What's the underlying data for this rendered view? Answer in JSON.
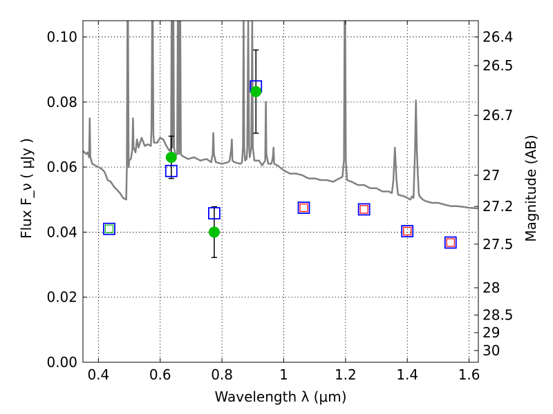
{
  "chart_data": {
    "type": "scatter",
    "xlabel": "Wavelength  λ (μm)",
    "ylabel": "Flux  F_ν  ( μJy )",
    "ylabel_right": "Magnitude (AB)",
    "xlim": [
      0.35,
      1.63
    ],
    "ylim": [
      0.0,
      0.105
    ],
    "grid": true,
    "x_ticks": [
      0.4,
      0.6,
      0.8,
      1.0,
      1.2,
      1.4,
      1.6
    ],
    "x_tick_labels": [
      "0.4",
      "0.6",
      "0.8",
      "1",
      "1.2",
      "1.4",
      "1.6"
    ],
    "y_ticks": [
      0.0,
      0.02,
      0.04,
      0.06,
      0.08,
      0.1
    ],
    "y_tick_labels": [
      "0.00",
      "0.02",
      "0.04",
      "0.06",
      "0.08",
      "0.10"
    ],
    "right_ticks": [
      {
        "label": "26.4",
        "flux": 0.1
      },
      {
        "label": "26.5",
        "flux": 0.0912
      },
      {
        "label": "26.7",
        "flux": 0.0759
      },
      {
        "label": "27",
        "flux": 0.0575
      },
      {
        "label": "27.2",
        "flux": 0.0479
      },
      {
        "label": "27.5",
        "flux": 0.0363
      },
      {
        "label": "28",
        "flux": 0.0229
      },
      {
        "label": "28.5",
        "flux": 0.0145
      },
      {
        "label": "29",
        "flux": 0.0091
      },
      {
        "label": "30",
        "flux": 0.0036
      }
    ],
    "series": [
      {
        "kind": "line",
        "color": "#808080",
        "points": [
          [
            0.35,
            0.065
          ],
          [
            0.36,
            0.064
          ],
          [
            0.365,
            0.0645
          ],
          [
            0.37,
            0.063
          ],
          [
            0.372,
            0.075
          ],
          [
            0.374,
            0.063
          ],
          [
            0.38,
            0.061
          ],
          [
            0.39,
            0.0605
          ],
          [
            0.4,
            0.06
          ],
          [
            0.41,
            0.0595
          ],
          [
            0.42,
            0.0585
          ],
          [
            0.43,
            0.056
          ],
          [
            0.44,
            0.0555
          ],
          [
            0.45,
            0.054
          ],
          [
            0.46,
            0.053
          ],
          [
            0.47,
            0.052
          ],
          [
            0.48,
            0.0505
          ],
          [
            0.49,
            0.05
          ],
          [
            0.492,
            0.06
          ],
          [
            0.494,
            0.105
          ],
          [
            0.496,
            0.105
          ],
          [
            0.498,
            0.06
          ],
          [
            0.5,
            0.062
          ],
          [
            0.505,
            0.0625
          ],
          [
            0.51,
            0.0655
          ],
          [
            0.512,
            0.075
          ],
          [
            0.514,
            0.066
          ],
          [
            0.52,
            0.0645
          ],
          [
            0.525,
            0.0685
          ],
          [
            0.53,
            0.066
          ],
          [
            0.54,
            0.069
          ],
          [
            0.55,
            0.0665
          ],
          [
            0.56,
            0.067
          ],
          [
            0.57,
            0.0665
          ],
          [
            0.572,
            0.072
          ],
          [
            0.574,
            0.105
          ],
          [
            0.576,
            0.105
          ],
          [
            0.578,
            0.07
          ],
          [
            0.58,
            0.0675
          ],
          [
            0.59,
            0.0675
          ],
          [
            0.6,
            0.069
          ],
          [
            0.61,
            0.0685
          ],
          [
            0.62,
            0.0665
          ],
          [
            0.63,
            0.065
          ],
          [
            0.635,
            0.066
          ],
          [
            0.637,
            0.105
          ],
          [
            0.639,
            0.105
          ],
          [
            0.641,
            0.066
          ],
          [
            0.643,
            0.105
          ],
          [
            0.645,
            0.066
          ],
          [
            0.65,
            0.0635
          ],
          [
            0.655,
            0.064
          ],
          [
            0.657,
            0.105
          ],
          [
            0.659,
            0.105
          ],
          [
            0.661,
            0.064
          ],
          [
            0.663,
            0.105
          ],
          [
            0.665,
            0.105
          ],
          [
            0.667,
            0.064
          ],
          [
            0.67,
            0.0635
          ],
          [
            0.69,
            0.0625
          ],
          [
            0.71,
            0.063
          ],
          [
            0.73,
            0.062
          ],
          [
            0.75,
            0.0625
          ],
          [
            0.765,
            0.0615
          ],
          [
            0.77,
            0.064
          ],
          [
            0.772,
            0.0705
          ],
          [
            0.774,
            0.064
          ],
          [
            0.78,
            0.0615
          ],
          [
            0.8,
            0.061
          ],
          [
            0.82,
            0.0615
          ],
          [
            0.825,
            0.062
          ],
          [
            0.83,
            0.0655
          ],
          [
            0.832,
            0.0685
          ],
          [
            0.834,
            0.062
          ],
          [
            0.84,
            0.0615
          ],
          [
            0.86,
            0.061
          ],
          [
            0.865,
            0.0615
          ],
          [
            0.868,
            0.066
          ],
          [
            0.87,
            0.105
          ],
          [
            0.872,
            0.066
          ],
          [
            0.875,
            0.062
          ],
          [
            0.88,
            0.0625
          ],
          [
            0.882,
            0.066
          ],
          [
            0.885,
            0.105
          ],
          [
            0.888,
            0.066
          ],
          [
            0.89,
            0.063
          ],
          [
            0.895,
            0.066
          ],
          [
            0.898,
            0.105
          ],
          [
            0.9,
            0.066
          ],
          [
            0.905,
            0.062
          ],
          [
            0.92,
            0.062
          ],
          [
            0.93,
            0.0605
          ],
          [
            0.94,
            0.062
          ],
          [
            0.942,
            0.08
          ],
          [
            0.944,
            0.064
          ],
          [
            0.95,
            0.061
          ],
          [
            0.96,
            0.061
          ],
          [
            0.965,
            0.063
          ],
          [
            0.967,
            0.066
          ],
          [
            0.969,
            0.061
          ],
          [
            0.98,
            0.0605
          ],
          [
            1.0,
            0.059
          ],
          [
            1.02,
            0.058
          ],
          [
            1.04,
            0.058
          ],
          [
            1.06,
            0.0575
          ],
          [
            1.08,
            0.0565
          ],
          [
            1.1,
            0.0565
          ],
          [
            1.12,
            0.056
          ],
          [
            1.14,
            0.056
          ],
          [
            1.16,
            0.0555
          ],
          [
            1.18,
            0.0565
          ],
          [
            1.19,
            0.057
          ],
          [
            1.195,
            0.062
          ],
          [
            1.197,
            0.105
          ],
          [
            1.199,
            0.105
          ],
          [
            1.201,
            0.062
          ],
          [
            1.205,
            0.056
          ],
          [
            1.22,
            0.0555
          ],
          [
            1.24,
            0.0545
          ],
          [
            1.26,
            0.0545
          ],
          [
            1.28,
            0.0535
          ],
          [
            1.3,
            0.0535
          ],
          [
            1.32,
            0.0525
          ],
          [
            1.34,
            0.0525
          ],
          [
            1.35,
            0.052
          ],
          [
            1.355,
            0.056
          ],
          [
            1.36,
            0.066
          ],
          [
            1.365,
            0.056
          ],
          [
            1.37,
            0.0515
          ],
          [
            1.39,
            0.051
          ],
          [
            1.4,
            0.0505
          ],
          [
            1.41,
            0.05
          ],
          [
            1.415,
            0.051
          ],
          [
            1.42,
            0.0505
          ],
          [
            1.425,
            0.065
          ],
          [
            1.428,
            0.0805
          ],
          [
            1.431,
            0.065
          ],
          [
            1.434,
            0.058
          ],
          [
            1.437,
            0.052
          ],
          [
            1.44,
            0.051
          ],
          [
            1.45,
            0.05
          ],
          [
            1.46,
            0.0495
          ],
          [
            1.48,
            0.049
          ],
          [
            1.5,
            0.049
          ],
          [
            1.52,
            0.0485
          ],
          [
            1.54,
            0.048
          ],
          [
            1.56,
            0.048
          ],
          [
            1.58,
            0.0478
          ],
          [
            1.6,
            0.0475
          ],
          [
            1.63,
            0.0473
          ]
        ]
      },
      {
        "kind": "observed",
        "marker": "filled-circle",
        "color": "#00c000",
        "points": [
          {
            "x": 0.636,
            "y": 0.063,
            "err": 0.0065
          },
          {
            "x": 0.775,
            "y": 0.04,
            "err": 0.0078
          },
          {
            "x": 0.91,
            "y": 0.0832,
            "err": 0.0128
          }
        ]
      },
      {
        "kind": "model",
        "marker": "open-square",
        "color": "#0000ff",
        "points": [
          {
            "x": 0.435,
            "y": 0.041
          },
          {
            "x": 0.636,
            "y": 0.0588
          },
          {
            "x": 0.775,
            "y": 0.0458
          },
          {
            "x": 0.91,
            "y": 0.0848
          },
          {
            "x": 1.065,
            "y": 0.0475
          },
          {
            "x": 1.26,
            "y": 0.047
          },
          {
            "x": 1.4,
            "y": 0.0403
          },
          {
            "x": 1.54,
            "y": 0.0368
          }
        ]
      },
      {
        "kind": "synthetic",
        "marker": "small-open-square",
        "colors": [
          "#00c000",
          "#ff0000",
          "#ff0000",
          "#ff0000",
          "#ff0000"
        ],
        "points": [
          {
            "x": 0.435,
            "y": 0.041
          },
          {
            "x": 1.065,
            "y": 0.0475
          },
          {
            "x": 1.26,
            "y": 0.047
          },
          {
            "x": 1.4,
            "y": 0.0403
          },
          {
            "x": 1.54,
            "y": 0.0368
          }
        ]
      }
    ]
  }
}
